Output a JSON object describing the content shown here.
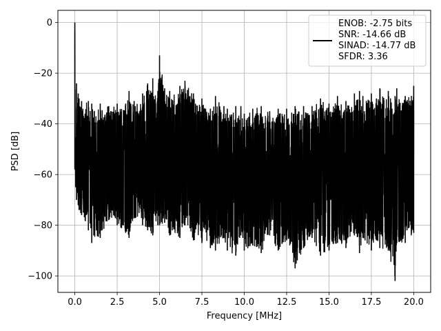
{
  "chart_data": {
    "type": "line",
    "title": "",
    "xlabel": "Frequency [MHz]",
    "ylabel": "PSD [dB]",
    "xlim": [
      -1.0,
      21.0
    ],
    "ylim": [
      -106.5,
      4.8
    ],
    "x_ticks": [
      0.0,
      2.5,
      5.0,
      7.5,
      10.0,
      12.5,
      15.0,
      17.5,
      20.0
    ],
    "x_tick_labels": [
      "0.0",
      "2.5",
      "5.0",
      "7.5",
      "10.0",
      "12.5",
      "15.0",
      "17.5",
      "20.0"
    ],
    "y_ticks": [
      0,
      -20,
      -40,
      -60,
      -80,
      -100
    ],
    "y_tick_labels": [
      "0",
      "−20",
      "−40",
      "−60",
      "−80",
      "−100"
    ],
    "grid": true,
    "legend_position": "top-right",
    "legend_lines": [
      "ENOB: -2.75 bits",
      "SNR: -14.66 dB",
      "SINAD: -14.77 dB",
      "SFDR: 3.36"
    ],
    "line_color": "#000000",
    "series": [
      {
        "x": [
          0.0,
          0.05,
          0.1,
          0.2,
          0.25,
          0.4,
          0.8,
          1.0,
          1.5,
          2.0,
          2.5,
          3.0,
          3.2,
          3.5,
          4.0,
          4.3,
          4.6,
          4.9,
          5.0,
          5.3,
          5.6,
          6.2,
          6.5,
          7.0,
          7.5,
          8.0,
          8.3,
          8.8,
          9.0,
          9.5,
          9.8,
          10.0,
          10.5,
          11.0,
          11.5,
          12.0,
          12.5,
          13.0,
          13.5,
          14.0,
          14.5,
          15.0,
          15.5,
          16.0,
          16.5,
          16.8,
          17.0,
          17.5,
          17.8,
          18.0,
          18.5,
          18.9,
          19.0,
          19.5,
          20.0
        ],
        "y_top": [
          0.0,
          -62,
          -24,
          -28,
          -30,
          -31,
          -31,
          -32,
          -32,
          -33,
          -32,
          -32,
          -27,
          -31,
          -28,
          -24,
          -22,
          -27,
          -13,
          -26,
          -27,
          -25,
          -23,
          -28,
          -30,
          -34,
          -29,
          -33,
          -34,
          -33,
          -33,
          -36,
          -34,
          -33,
          -35,
          -34,
          -34,
          -33,
          -33,
          -33,
          -30,
          -32,
          -29,
          -31,
          -28,
          -27,
          -29,
          -28,
          -30,
          -26,
          -27,
          -29,
          -26,
          -29,
          -25
        ],
        "y_bottom": [
          -58,
          -65,
          -70,
          -72,
          -74,
          -76,
          -82,
          -87,
          -85,
          -78,
          -80,
          -83,
          -85,
          -77,
          -80,
          -82,
          -84,
          -80,
          -80,
          -79,
          -84,
          -85,
          -80,
          -86,
          -87,
          -89,
          -90,
          -85,
          -90,
          -92,
          -84,
          -90,
          -88,
          -91,
          -84,
          -90,
          -86,
          -97,
          -89,
          -85,
          -92,
          -90,
          -87,
          -89,
          -84,
          -91,
          -85,
          -90,
          -86,
          -89,
          -90,
          -102,
          -87,
          -87,
          -83
        ]
      }
    ]
  }
}
